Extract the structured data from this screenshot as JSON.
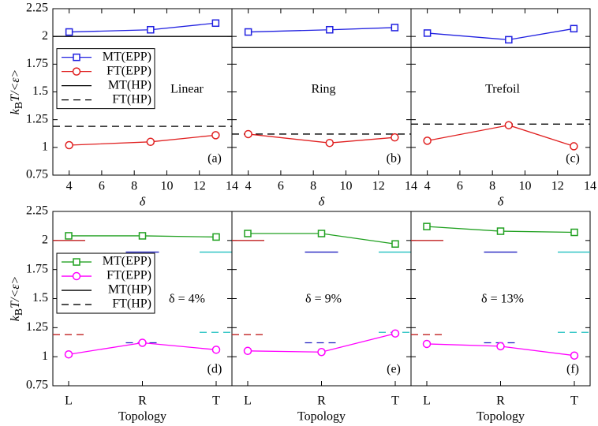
{
  "chart_data": [
    {
      "type": "line",
      "annotation": "Linear",
      "panel_label": "(a)",
      "ylabel": [
        "k",
        "B",
        "T/<ε>"
      ],
      "xlabel": "δ",
      "x": [
        4,
        9,
        13
      ],
      "xlim": [
        3,
        14
      ],
      "xticks": [
        4,
        6,
        8,
        10,
        12,
        14
      ],
      "ylim": [
        0.75,
        2.25
      ],
      "yticks": [
        0.75,
        1,
        1.25,
        1.5,
        1.75,
        2,
        2.25
      ],
      "legend": "center left",
      "series": [
        {
          "name": "MT(EPP)",
          "color": "#2020e0",
          "marker": "square",
          "values": [
            2.04,
            2.06,
            2.12
          ]
        },
        {
          "name": "FT(EPP)",
          "color": "#e02020",
          "marker": "circle",
          "values": [
            1.02,
            1.05,
            1.11
          ]
        }
      ],
      "hlines": [
        {
          "name": "MT(HP)",
          "color": "#000000",
          "dash": false,
          "value": 2.0
        },
        {
          "name": "FT(HP)",
          "color": "#000000",
          "dash": true,
          "value": 1.19
        }
      ]
    },
    {
      "type": "line",
      "annotation": "Ring",
      "panel_label": "(b)",
      "xlabel": "δ",
      "x": [
        4,
        9,
        13
      ],
      "xlim": [
        3,
        14
      ],
      "xticks": [
        4,
        6,
        8,
        10,
        12,
        14
      ],
      "ylim": [
        0.75,
        2.25
      ],
      "yticks": [
        0.75,
        1,
        1.25,
        1.5,
        1.75,
        2,
        2.25
      ],
      "series": [
        {
          "color": "#2020e0",
          "marker": "square",
          "values": [
            2.04,
            2.06,
            2.08
          ]
        },
        {
          "color": "#e02020",
          "marker": "circle",
          "values": [
            1.12,
            1.04,
            1.09
          ]
        }
      ],
      "hlines": [
        {
          "color": "#000000",
          "dash": false,
          "value": 1.9
        },
        {
          "color": "#000000",
          "dash": true,
          "value": 1.12
        }
      ]
    },
    {
      "type": "line",
      "annotation": "Trefoil",
      "panel_label": "(c)",
      "xlabel": "δ",
      "x": [
        4,
        9,
        13
      ],
      "xlim": [
        3,
        14
      ],
      "xticks": [
        4,
        6,
        8,
        10,
        12,
        14
      ],
      "ylim": [
        0.75,
        2.25
      ],
      "yticks": [
        0.75,
        1,
        1.25,
        1.5,
        1.75,
        2,
        2.25
      ],
      "series": [
        {
          "color": "#2020e0",
          "marker": "square",
          "values": [
            2.03,
            1.97,
            2.07
          ]
        },
        {
          "color": "#e02020",
          "marker": "circle",
          "values": [
            1.06,
            1.2,
            1.01
          ]
        }
      ],
      "hlines": [
        {
          "color": "#000000",
          "dash": false,
          "value": 1.9
        },
        {
          "color": "#000000",
          "dash": true,
          "value": 1.21
        }
      ]
    },
    {
      "type": "line",
      "annotation": "δ = 4%",
      "panel_label": "(d)",
      "ylabel": [
        "k",
        "B",
        "T/<ε>"
      ],
      "xlabel": "Topology",
      "categories": [
        "L",
        "R",
        "T"
      ],
      "ylim": [
        0.75,
        2.25
      ],
      "yticks": [
        0.75,
        1,
        1.25,
        1.5,
        1.75,
        2,
        2.25
      ],
      "legend": "center left",
      "series": [
        {
          "name": "MT(EPP)",
          "color": "#20a020",
          "marker": "square",
          "values": [
            2.04,
            2.04,
            2.03
          ]
        },
        {
          "name": "FT(EPP)",
          "color": "#ff00ff",
          "marker": "circle",
          "values": [
            1.02,
            1.12,
            1.06
          ]
        }
      ],
      "hlines": [
        {
          "name": "MT(HP)",
          "color": "#000000",
          "dash": false,
          "values": [
            2.0,
            1.9,
            1.9
          ],
          "colors": [
            "#c02020",
            "#2020c0",
            "#20c0c0"
          ]
        },
        {
          "name": "FT(HP)",
          "color": "#000000",
          "dash": true,
          "values": [
            1.19,
            1.12,
            1.21
          ],
          "colors": [
            "#c02020",
            "#2020c0",
            "#20c0c0"
          ]
        }
      ]
    },
    {
      "type": "line",
      "annotation": "δ = 9%",
      "panel_label": "(e)",
      "xlabel": "Topology",
      "categories": [
        "L",
        "R",
        "T"
      ],
      "ylim": [
        0.75,
        2.25
      ],
      "yticks": [
        0.75,
        1,
        1.25,
        1.5,
        1.75,
        2,
        2.25
      ],
      "series": [
        {
          "color": "#20a020",
          "marker": "square",
          "values": [
            2.06,
            2.06,
            1.97
          ]
        },
        {
          "color": "#ff00ff",
          "marker": "circle",
          "values": [
            1.05,
            1.04,
            1.2
          ]
        }
      ],
      "hlines": [
        {
          "color": "#000000",
          "dash": false,
          "values": [
            2.0,
            1.9,
            1.9
          ],
          "colors": [
            "#c02020",
            "#2020c0",
            "#20c0c0"
          ]
        },
        {
          "color": "#000000",
          "dash": true,
          "values": [
            1.19,
            1.12,
            1.21
          ],
          "colors": [
            "#c02020",
            "#2020c0",
            "#20c0c0"
          ]
        }
      ]
    },
    {
      "type": "line",
      "annotation": "δ = 13%",
      "panel_label": "(f)",
      "xlabel": "Topology",
      "categories": [
        "L",
        "R",
        "T"
      ],
      "ylim": [
        0.75,
        2.25
      ],
      "yticks": [
        0.75,
        1,
        1.25,
        1.5,
        1.75,
        2,
        2.25
      ],
      "series": [
        {
          "color": "#20a020",
          "marker": "square",
          "values": [
            2.12,
            2.08,
            2.07
          ]
        },
        {
          "color": "#ff00ff",
          "marker": "circle",
          "values": [
            1.11,
            1.09,
            1.01
          ]
        }
      ],
      "hlines": [
        {
          "color": "#000000",
          "dash": false,
          "values": [
            2.0,
            1.9,
            1.9
          ],
          "colors": [
            "#c02020",
            "#2020c0",
            "#20c0c0"
          ]
        },
        {
          "color": "#000000",
          "dash": true,
          "values": [
            1.19,
            1.12,
            1.21
          ],
          "colors": [
            "#c02020",
            "#2020c0",
            "#20c0c0"
          ]
        }
      ]
    }
  ]
}
